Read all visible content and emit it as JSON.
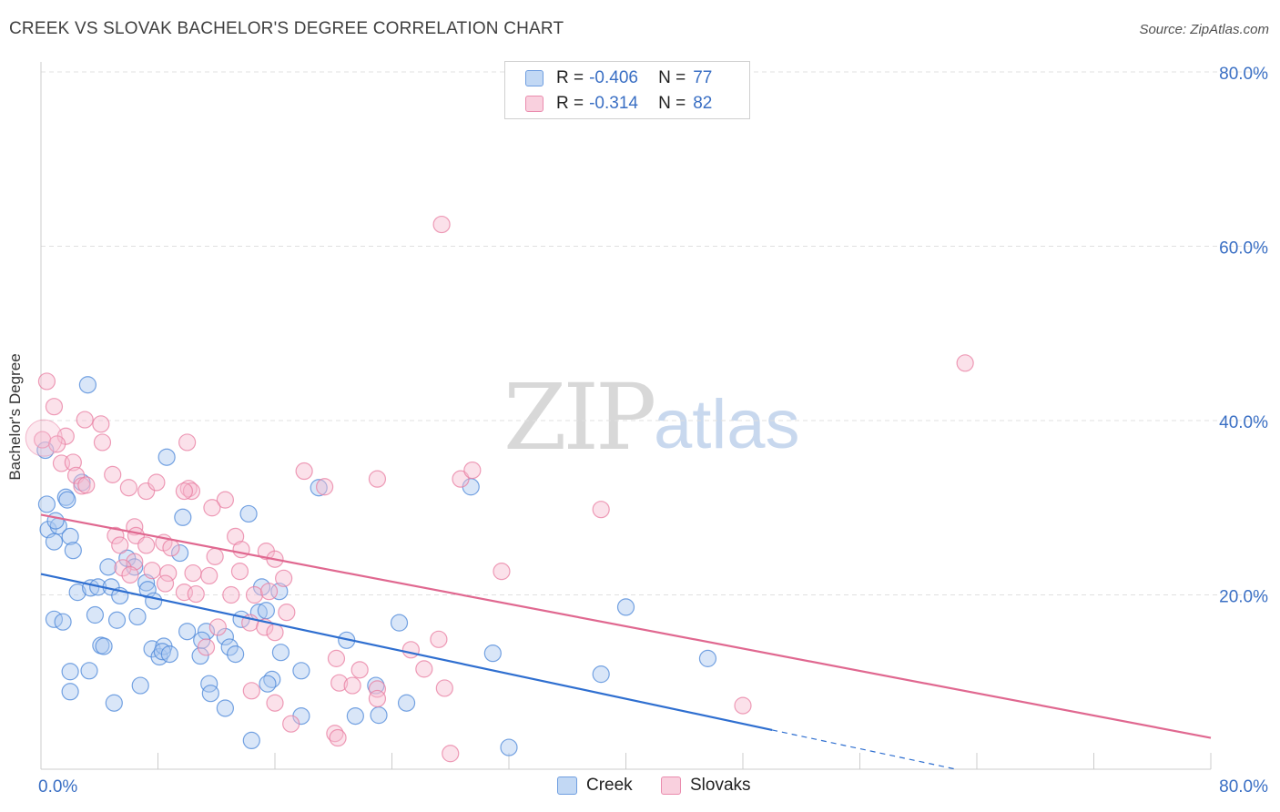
{
  "title": "CREEK VS SLOVAK BACHELOR'S DEGREE CORRELATION CHART",
  "source": "Source: ZipAtlas.com",
  "watermark": {
    "zip": "ZIP",
    "atlas": "atlas"
  },
  "legend": {
    "creek": {
      "r_label": "R =",
      "r_value": "-0.406",
      "n_label": "N =",
      "n_value": "77"
    },
    "slovaks": {
      "r_label": "R =",
      "r_value": "-0.314",
      "n_label": "N =",
      "n_value": "82"
    }
  },
  "bottom_legend": {
    "creek": "Creek",
    "slovaks": "Slovaks"
  },
  "colors": {
    "creek_fill": "#aac8f0",
    "creek_stroke": "#4a86d8",
    "creek_line": "#2f6fd0",
    "slovak_fill": "#f7bcd0",
    "slovak_stroke": "#e87ca0",
    "slovak_line": "#e06890",
    "axis_label": "#3a6fc4",
    "grid": "#e0e0e0"
  },
  "chart_data": {
    "type": "scatter",
    "title": "CREEK VS SLOVAK BACHELOR'S DEGREE CORRELATION CHART",
    "xlabel": "",
    "ylabel": "Bachelor's Degree",
    "xlim": [
      0,
      80
    ],
    "ylim": [
      0,
      80
    ],
    "x_ticks": [
      "0.0%",
      "80.0%"
    ],
    "y_ticks": [
      "20.0%",
      "40.0%",
      "60.0%",
      "80.0%"
    ],
    "series": [
      {
        "name": "Creek",
        "r": -0.406,
        "n": 77,
        "trend": {
          "x0": 0,
          "y0": 22.4,
          "x1": 50,
          "y1": 4.5,
          "dash_to_x": 62.5
        },
        "points": [
          [
            3.2,
            44.1
          ],
          [
            0.3,
            36.6
          ],
          [
            8.6,
            35.8
          ],
          [
            0.4,
            30.4
          ],
          [
            1.7,
            31.2
          ],
          [
            1.8,
            30.9
          ],
          [
            2.8,
            32.9
          ],
          [
            0.5,
            27.5
          ],
          [
            1.2,
            27.9
          ],
          [
            0.9,
            26.1
          ],
          [
            2.0,
            26.7
          ],
          [
            2.2,
            25.1
          ],
          [
            1.0,
            28.5
          ],
          [
            5.9,
            24.2
          ],
          [
            6.4,
            23.2
          ],
          [
            4.6,
            23.2
          ],
          [
            7.2,
            21.4
          ],
          [
            9.5,
            24.8
          ],
          [
            2.5,
            20.3
          ],
          [
            3.4,
            20.8
          ],
          [
            3.9,
            20.9
          ],
          [
            4.8,
            20.9
          ],
          [
            5.4,
            19.9
          ],
          [
            7.3,
            20.6
          ],
          [
            7.7,
            19.3
          ],
          [
            0.9,
            17.2
          ],
          [
            1.5,
            16.9
          ],
          [
            3.7,
            17.7
          ],
          [
            5.2,
            17.1
          ],
          [
            6.6,
            17.5
          ],
          [
            10.0,
            15.8
          ],
          [
            11.3,
            15.8
          ],
          [
            13.7,
            17.2
          ],
          [
            14.9,
            18.0
          ],
          [
            15.4,
            18.2
          ],
          [
            16.3,
            20.4
          ],
          [
            15.1,
            20.9
          ],
          [
            9.7,
            28.9
          ],
          [
            14.2,
            29.3
          ],
          [
            19.0,
            32.3
          ],
          [
            29.4,
            32.4
          ],
          [
            40.0,
            18.6
          ],
          [
            24.5,
            16.8
          ],
          [
            20.9,
            14.8
          ],
          [
            12.6,
            15.2
          ],
          [
            4.1,
            14.2
          ],
          [
            4.3,
            14.1
          ],
          [
            7.6,
            13.8
          ],
          [
            8.1,
            12.9
          ],
          [
            8.4,
            14.1
          ],
          [
            8.3,
            13.5
          ],
          [
            8.8,
            13.2
          ],
          [
            10.9,
            13.0
          ],
          [
            12.9,
            14.0
          ],
          [
            13.3,
            13.2
          ],
          [
            16.4,
            13.4
          ],
          [
            11.0,
            14.8
          ],
          [
            30.9,
            13.3
          ],
          [
            45.6,
            12.7
          ],
          [
            2.0,
            11.2
          ],
          [
            3.3,
            11.3
          ],
          [
            6.8,
            9.6
          ],
          [
            11.5,
            9.8
          ],
          [
            11.6,
            8.7
          ],
          [
            15.8,
            10.3
          ],
          [
            15.5,
            9.8
          ],
          [
            17.8,
            11.3
          ],
          [
            22.9,
            9.6
          ],
          [
            38.3,
            10.9
          ],
          [
            2.0,
            8.9
          ],
          [
            5.0,
            7.6
          ],
          [
            12.6,
            7.0
          ],
          [
            17.8,
            6.1
          ],
          [
            21.5,
            6.1
          ],
          [
            23.1,
            6.2
          ],
          [
            25.0,
            7.6
          ],
          [
            14.4,
            3.3
          ],
          [
            32.0,
            2.5
          ]
        ]
      },
      {
        "name": "Slovaks",
        "r": -0.314,
        "n": 82,
        "trend": {
          "x0": 0,
          "y0": 29.2,
          "x1": 80,
          "y1": 3.6
        },
        "points": [
          [
            27.4,
            62.5
          ],
          [
            63.2,
            46.6
          ],
          [
            0.4,
            44.5
          ],
          [
            0.9,
            41.6
          ],
          [
            3.0,
            40.1
          ],
          [
            4.1,
            39.6
          ],
          [
            0.1,
            37.8
          ],
          [
            1.7,
            38.2
          ],
          [
            1.1,
            37.3
          ],
          [
            4.2,
            37.5
          ],
          [
            10.0,
            37.5
          ],
          [
            1.4,
            35.1
          ],
          [
            2.2,
            35.2
          ],
          [
            2.4,
            33.7
          ],
          [
            4.9,
            33.8
          ],
          [
            2.8,
            32.5
          ],
          [
            3.1,
            32.6
          ],
          [
            6.0,
            32.3
          ],
          [
            7.2,
            31.9
          ],
          [
            7.9,
            32.9
          ],
          [
            10.1,
            32.2
          ],
          [
            10.3,
            31.9
          ],
          [
            12.6,
            30.9
          ],
          [
            11.7,
            30.0
          ],
          [
            18.0,
            34.2
          ],
          [
            19.4,
            32.4
          ],
          [
            23.0,
            33.3
          ],
          [
            28.7,
            33.3
          ],
          [
            29.5,
            34.3
          ],
          [
            38.3,
            29.8
          ],
          [
            6.4,
            27.8
          ],
          [
            5.1,
            26.8
          ],
          [
            6.5,
            26.8
          ],
          [
            13.3,
            26.7
          ],
          [
            7.2,
            25.7
          ],
          [
            8.4,
            26.0
          ],
          [
            5.4,
            25.7
          ],
          [
            8.9,
            25.4
          ],
          [
            15.4,
            25.0
          ],
          [
            16.0,
            24.1
          ],
          [
            11.9,
            24.4
          ],
          [
            6.4,
            23.8
          ],
          [
            5.6,
            23.1
          ],
          [
            13.6,
            22.7
          ],
          [
            31.5,
            22.7
          ],
          [
            7.6,
            22.8
          ],
          [
            8.7,
            22.5
          ],
          [
            11.5,
            22.2
          ],
          [
            16.6,
            21.9
          ],
          [
            6.1,
            22.3
          ],
          [
            8.5,
            21.3
          ],
          [
            9.8,
            20.3
          ],
          [
            10.6,
            20.1
          ],
          [
            13.0,
            20.0
          ],
          [
            14.6,
            20.0
          ],
          [
            15.6,
            20.4
          ],
          [
            16.8,
            18.0
          ],
          [
            12.1,
            16.3
          ],
          [
            14.3,
            16.8
          ],
          [
            15.3,
            16.3
          ],
          [
            16.0,
            15.7
          ],
          [
            11.3,
            14.0
          ],
          [
            25.3,
            13.7
          ],
          [
            27.2,
            14.9
          ],
          [
            20.2,
            12.7
          ],
          [
            21.8,
            11.4
          ],
          [
            26.2,
            11.5
          ],
          [
            20.4,
            9.9
          ],
          [
            21.3,
            9.6
          ],
          [
            23.0,
            9.2
          ],
          [
            23.0,
            8.1
          ],
          [
            27.6,
            9.3
          ],
          [
            48.0,
            7.3
          ],
          [
            17.1,
            5.2
          ],
          [
            20.1,
            4.1
          ],
          [
            20.3,
            3.6
          ],
          [
            28.0,
            1.8
          ],
          [
            16.0,
            7.6
          ],
          [
            14.4,
            9.0
          ],
          [
            10.4,
            22.5
          ],
          [
            13.7,
            25.2
          ],
          [
            9.8,
            31.9
          ]
        ]
      }
    ]
  }
}
